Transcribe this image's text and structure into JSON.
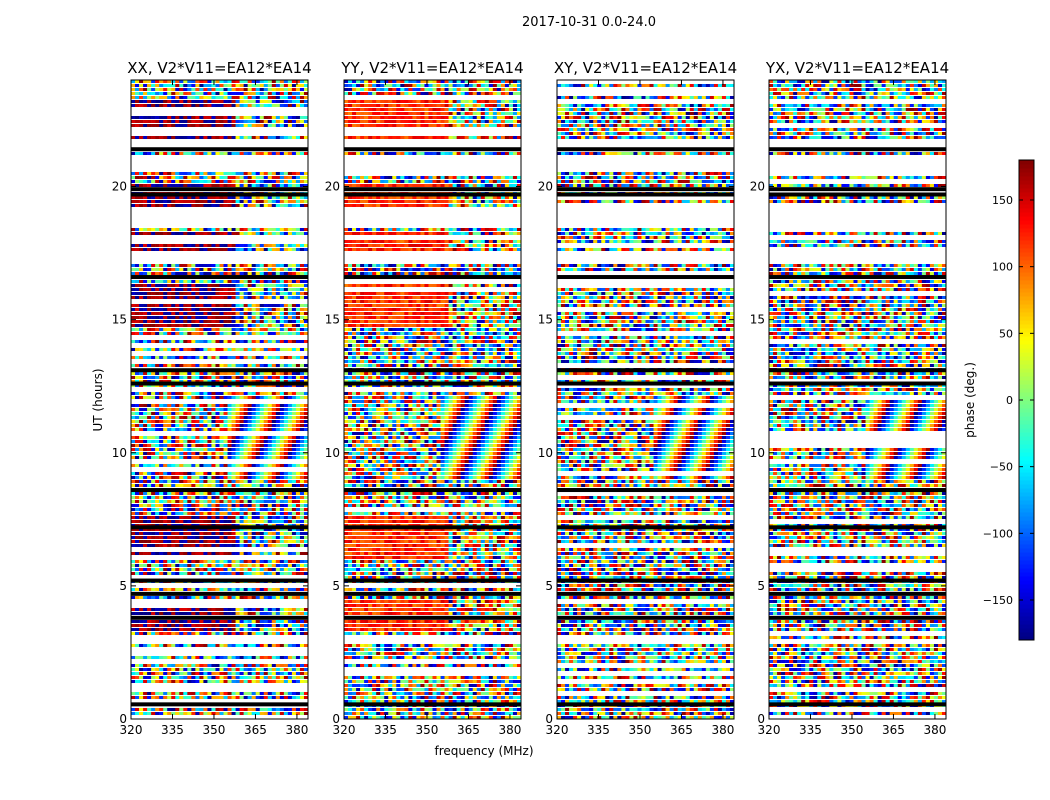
{
  "figure": {
    "suptitle": "2017-10-31 0.0-24.0"
  },
  "chart_data": {
    "type": "heatmap",
    "xlabel": "frequency (MHz)",
    "ylabel": "UT (hours)",
    "xlim": [
      320,
      384
    ],
    "ylim": [
      0,
      24
    ],
    "xticks": [
      320,
      335,
      350,
      365,
      380
    ],
    "yticks": [
      0,
      5,
      10,
      15,
      20
    ],
    "panels": [
      {
        "title": "XX, V2*V11=EA12*EA14",
        "polarization": "XX"
      },
      {
        "title": "YY, V2*V11=EA12*EA14",
        "polarization": "YY"
      },
      {
        "title": "XY, V2*V11=EA12*EA14",
        "polarization": "XY"
      },
      {
        "title": "YX, V2*V11=EA12*EA14",
        "polarization": "YX"
      }
    ],
    "colorbar": {
      "label": "phase (deg.)",
      "range": [
        -180,
        180
      ],
      "ticks": [
        -150,
        -100,
        -50,
        0,
        50,
        100,
        150
      ],
      "colormap": "jet"
    },
    "blank_time_ranges_hours": [
      [
        17.1,
        17.6
      ],
      [
        18.4,
        19.2
      ],
      [
        20.5,
        21.1
      ],
      [
        21.5,
        21.8
      ],
      [
        2.8,
        2.9
      ],
      [
        0.35,
        0.45
      ]
    ],
    "black_flag_times_hours": [
      16.6,
      19.7,
      19.9,
      13.1,
      12.6,
      8.6,
      7.2,
      5.2,
      4.7,
      3.8,
      0.55,
      21.4
    ],
    "band_phase_deg": {
      "XX": {
        "coherent_low_band": 175,
        "coherent_high_band": -50
      },
      "YY": {
        "coherent_low_band": 120,
        "coherent_high_band": 60
      }
    }
  },
  "colors": {
    "flagged": "#000000",
    "blank": "#ffffff",
    "axes": "#000000"
  }
}
